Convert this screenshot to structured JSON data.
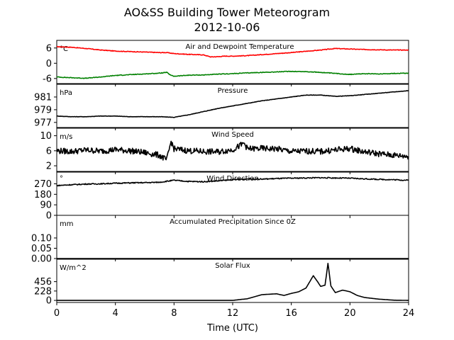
{
  "figure": {
    "title": "AO&SS Building Tower Meteorogram",
    "subtitle": "2012-10-06",
    "xlabel": "Time (UTC)"
  },
  "chart_data": {
    "type": "line",
    "x_axis": {
      "label": "Time (UTC)",
      "range": [
        0,
        24
      ],
      "ticks": [
        0,
        4,
        8,
        12,
        16,
        20,
        24
      ]
    },
    "panels": [
      {
        "id": "temp",
        "title": "Air and Dewpoint Temperature",
        "unit": "°C",
        "ylim": [
          -8,
          9
        ],
        "yticks": [
          6,
          0,
          -6
        ],
        "series": [
          {
            "color": "#ff0000",
            "points": [
              [
                0,
                6.5
              ],
              [
                1,
                6.3
              ],
              [
                2,
                5.8
              ],
              [
                3,
                5.2
              ],
              [
                4,
                4.8
              ],
              [
                5,
                4.6
              ],
              [
                6,
                4.4
              ],
              [
                7,
                4.2
              ],
              [
                7.5,
                4.2
              ],
              [
                8,
                3.8
              ],
              [
                9,
                3.5
              ],
              [
                10,
                3.3
              ],
              [
                10.5,
                2.5
              ],
              [
                11,
                2.6
              ],
              [
                11.5,
                2.8
              ],
              [
                12,
                2.8
              ],
              [
                13,
                3.0
              ],
              [
                14,
                3.4
              ],
              [
                15,
                3.8
              ],
              [
                16,
                4.2
              ],
              [
                17,
                4.7
              ],
              [
                18,
                5.2
              ],
              [
                19,
                5.8
              ],
              [
                20,
                5.6
              ],
              [
                21,
                5.4
              ],
              [
                22,
                5.3
              ],
              [
                23,
                5.2
              ],
              [
                24,
                5.2
              ]
            ]
          },
          {
            "color": "#008000",
            "points": [
              [
                0,
                -5.4
              ],
              [
                1,
                -5.7
              ],
              [
                2,
                -5.9
              ],
              [
                3,
                -5.4
              ],
              [
                4,
                -4.8
              ],
              [
                5,
                -4.5
              ],
              [
                6,
                -4.2
              ],
              [
                7,
                -3.9
              ],
              [
                7.5,
                -3.6
              ],
              [
                7.8,
                -4.8
              ],
              [
                8,
                -5.1
              ],
              [
                9,
                -4.7
              ],
              [
                10,
                -4.6
              ],
              [
                11,
                -4.3
              ],
              [
                12,
                -4.1
              ],
              [
                13,
                -3.8
              ],
              [
                14,
                -3.6
              ],
              [
                15,
                -3.4
              ],
              [
                16,
                -3.2
              ],
              [
                17,
                -3.3
              ],
              [
                18,
                -3.6
              ],
              [
                19,
                -4.0
              ],
              [
                20,
                -4.4
              ],
              [
                21,
                -4.1
              ],
              [
                22,
                -4.2
              ],
              [
                23,
                -4.0
              ],
              [
                24,
                -3.9
              ]
            ]
          }
        ]
      },
      {
        "id": "pressure",
        "title": "Pressure",
        "unit": "hPa",
        "ylim": [
          976.2,
          983
        ],
        "yticks": [
          981,
          979,
          977
        ],
        "series": [
          {
            "color": "#000000",
            "points": [
              [
                0,
                978.0
              ],
              [
                1,
                977.9
              ],
              [
                2,
                977.9
              ],
              [
                3,
                978.0
              ],
              [
                4,
                978.0
              ],
              [
                5,
                977.9
              ],
              [
                6,
                977.9
              ],
              [
                7,
                977.9
              ],
              [
                8,
                977.8
              ],
              [
                9,
                978.2
              ],
              [
                10,
                978.7
              ],
              [
                11,
                979.2
              ],
              [
                12,
                979.6
              ],
              [
                13,
                980.0
              ],
              [
                14,
                980.4
              ],
              [
                15,
                980.7
              ],
              [
                16,
                981.0
              ],
              [
                17,
                981.3
              ],
              [
                18,
                981.3
              ],
              [
                19,
                981.1
              ],
              [
                20,
                981.2
              ],
              [
                21,
                981.4
              ],
              [
                22,
                981.6
              ],
              [
                23,
                981.8
              ],
              [
                24,
                982.0
              ]
            ]
          }
        ]
      },
      {
        "id": "wind_speed",
        "title": "Wind Speed",
        "unit": "m/s",
        "ylim": [
          0.5,
          12
        ],
        "yticks": [
          10,
          6,
          2
        ],
        "series": [
          {
            "color": "#000000",
            "points": [
              [
                0,
                6.0
              ],
              [
                1,
                5.8
              ],
              [
                2,
                6.2
              ],
              [
                3,
                5.9
              ],
              [
                4,
                6.3
              ],
              [
                5,
                6.0
              ],
              [
                6,
                5.5
              ],
              [
                7,
                4.8
              ],
              [
                7.5,
                3.5
              ],
              [
                7.8,
                8.5
              ],
              [
                8,
                6.5
              ],
              [
                9,
                6.0
              ],
              [
                10,
                5.8
              ],
              [
                11,
                5.7
              ],
              [
                12,
                6.3
              ],
              [
                12.8,
                8.0
              ],
              [
                13,
                6.5
              ],
              [
                14,
                6.6
              ],
              [
                15,
                6.5
              ],
              [
                16,
                5.8
              ],
              [
                17,
                5.9
              ],
              [
                18,
                5.8
              ],
              [
                19,
                6.2
              ],
              [
                20,
                6.6
              ],
              [
                21,
                5.7
              ],
              [
                22,
                5.2
              ],
              [
                23,
                4.8
              ],
              [
                24,
                4.5
              ]
            ]
          }
        ]
      },
      {
        "id": "wind_dir",
        "title": "Wind Direction",
        "unit": "°",
        "ylim": [
          0,
          370
        ],
        "yticks": [
          270,
          180,
          90,
          0
        ],
        "series": [
          {
            "color": "#000000",
            "points": [
              [
                0,
                255
              ],
              [
                1,
                262
              ],
              [
                2,
                268
              ],
              [
                3,
                270
              ],
              [
                4,
                275
              ],
              [
                5,
                278
              ],
              [
                6,
                280
              ],
              [
                7,
                283
              ],
              [
                8,
                300
              ],
              [
                9,
                290
              ],
              [
                10,
                288
              ],
              [
                11,
                295
              ],
              [
                12,
                305
              ],
              [
                13,
                312
              ],
              [
                14,
                310
              ],
              [
                15,
                315
              ],
              [
                16,
                318
              ],
              [
                17,
                320
              ],
              [
                18,
                322
              ],
              [
                19,
                320
              ],
              [
                20,
                318
              ],
              [
                21,
                312
              ],
              [
                22,
                308
              ],
              [
                23,
                305
              ],
              [
                24,
                300
              ]
            ]
          }
        ]
      },
      {
        "id": "precip",
        "title": "Accumulated Precipitation Since 0Z",
        "unit": "mm",
        "ylim": [
          0,
          0.21
        ],
        "yticks": [
          0.1,
          0.05,
          0.0
        ],
        "series": [
          {
            "color": "#000000",
            "points": [
              [
                0,
                0
              ],
              [
                24,
                0
              ]
            ]
          }
        ]
      },
      {
        "id": "solar",
        "title": "Solar Flux",
        "unit": "W/m^2",
        "ylim": [
          -50,
          1000
        ],
        "yticks": [
          456,
          228,
          0
        ],
        "series": [
          {
            "color": "#000000",
            "points": [
              [
                0,
                0
              ],
              [
                6,
                0
              ],
              [
                12,
                0
              ],
              [
                13,
                40
              ],
              [
                14,
                140
              ],
              [
                15,
                160
              ],
              [
                15.5,
                120
              ],
              [
                16,
                170
              ],
              [
                16.5,
                210
              ],
              [
                17,
                300
              ],
              [
                17.5,
                600
              ],
              [
                17.8,
                450
              ],
              [
                18,
                340
              ],
              [
                18.3,
                370
              ],
              [
                18.5,
                900
              ],
              [
                18.7,
                350
              ],
              [
                19,
                190
              ],
              [
                19.5,
                250
              ],
              [
                20,
                210
              ],
              [
                20.5,
                120
              ],
              [
                21,
                70
              ],
              [
                22,
                30
              ],
              [
                23,
                5
              ],
              [
                24,
                0
              ]
            ]
          }
        ]
      }
    ]
  }
}
